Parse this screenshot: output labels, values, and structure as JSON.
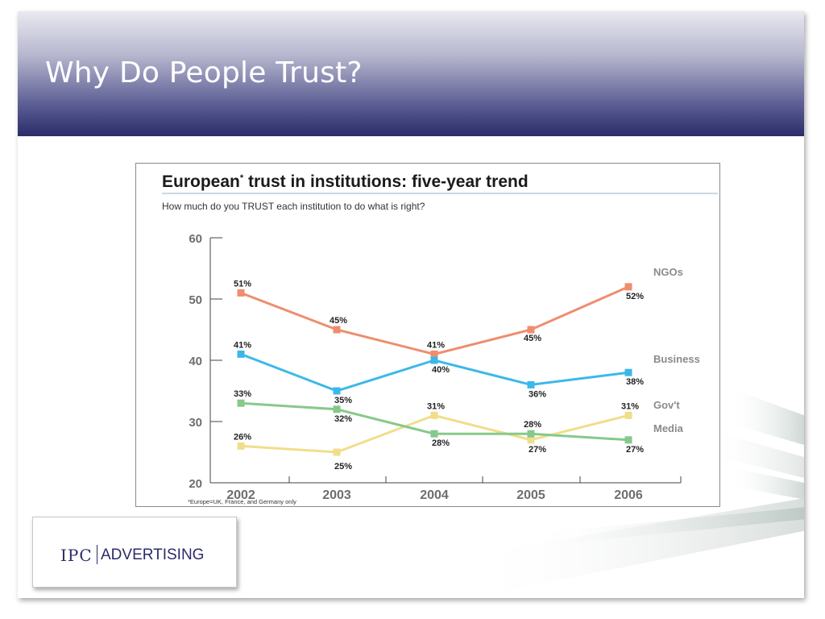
{
  "slide": {
    "title": "Why Do People Trust?"
  },
  "logo": {
    "mark": "IPC",
    "text": "ADVERTISING"
  },
  "chart_data": {
    "type": "line",
    "title_main": "European",
    "title_sup": "*",
    "title_rest": " trust in institutions: five-year trend",
    "subtitle": "How much do you TRUST each institution to do what is right?",
    "footnote": "*Europe=UK, France, and Germany only",
    "x": [
      "2002",
      "2003",
      "2004",
      "2005",
      "2006"
    ],
    "ylim": [
      20,
      60
    ],
    "yticks": [
      "20",
      "30",
      "40",
      "50",
      "60"
    ],
    "grid": false,
    "series": [
      {
        "name": "NGOs",
        "color": "#ef8d6f",
        "values": [
          51,
          45,
          41,
          45,
          52
        ],
        "labels": [
          "51%",
          "45%",
          "41%",
          "45%",
          "52%"
        ]
      },
      {
        "name": "Business",
        "color": "#3cb8e8",
        "values": [
          41,
          35,
          40,
          36,
          38
        ],
        "labels": [
          "41%",
          "35%",
          "40%",
          "36%",
          "38%"
        ]
      },
      {
        "name": "Gov't",
        "color": "#f0de8a",
        "values": [
          26,
          25,
          31,
          27,
          31
        ],
        "labels": [
          "26%",
          "25%",
          "31%",
          "27%",
          "31%"
        ]
      },
      {
        "name": "Media",
        "color": "#86c98b",
        "values": [
          33,
          32,
          28,
          28,
          27
        ],
        "labels": [
          "33%",
          "32%",
          "28%",
          "28%",
          "27%"
        ]
      }
    ]
  }
}
